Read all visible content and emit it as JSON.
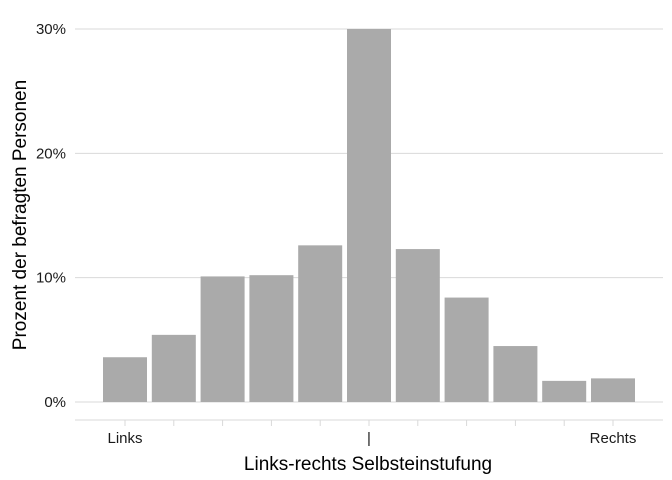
{
  "chart_data": {
    "type": "bar",
    "title": "",
    "xlabel": "Links-rechts Selbsteinstufung",
    "ylabel": "Prozent der befragten Personen",
    "categories": [
      "Links",
      "",
      "",
      "",
      "",
      "|",
      "",
      "",
      "",
      "",
      "Rechts"
    ],
    "values": [
      3.6,
      5.4,
      10.1,
      10.2,
      12.6,
      30.0,
      12.3,
      8.4,
      4.5,
      1.7,
      1.9
    ],
    "y_unit": "%",
    "ylim": [
      0,
      30
    ],
    "y_ticks": [
      0,
      10,
      20,
      30
    ],
    "y_tick_labels": [
      "0%",
      "10%",
      "20%",
      "30%"
    ],
    "grid": "horizontal",
    "legend": "none",
    "colors": {
      "bar": "#aaaaaa",
      "grid": "#d9d9d9",
      "text": "#1a1a1a"
    }
  }
}
